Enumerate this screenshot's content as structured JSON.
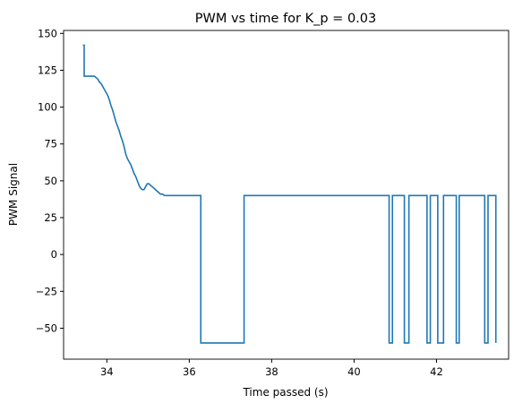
{
  "chart_data": {
    "type": "line",
    "title": "PWM vs time for K_p = 0.03",
    "xlabel": "Time passed (s)",
    "ylabel": "PWM Signal",
    "xlim": [
      32.95,
      43.75
    ],
    "ylim": [
      -71,
      152
    ],
    "x_ticks": [
      34,
      36,
      38,
      40,
      42
    ],
    "y_ticks": [
      -50,
      -25,
      0,
      25,
      50,
      75,
      100,
      125,
      150
    ],
    "grid": false,
    "colors": {
      "line": "#1f77b4",
      "axes": "#000000",
      "background": "#ffffff"
    },
    "series": [
      {
        "x": [
          33.42,
          33.45,
          33.45,
          33.7,
          33.74,
          33.78,
          33.82,
          33.86,
          33.9,
          33.94,
          33.98,
          34.02,
          34.06,
          34.1,
          34.14,
          34.18,
          34.22,
          34.26,
          34.3,
          34.34,
          34.38,
          34.42,
          34.46,
          34.5,
          34.54,
          34.58,
          34.62,
          34.66,
          34.7,
          34.74,
          34.78,
          34.82,
          34.86,
          34.9,
          34.94,
          34.98,
          35.02,
          35.06,
          35.1,
          35.14,
          35.18,
          35.22,
          35.26,
          35.3,
          35.35,
          35.4,
          35.43,
          35.43,
          36.28,
          36.28,
          37.33,
          37.33,
          40.85,
          40.85,
          40.93,
          40.93,
          41.22,
          41.22,
          41.33,
          41.33,
          41.77,
          41.77,
          41.85,
          41.85,
          42.03,
          42.03,
          42.17,
          42.17,
          42.48,
          42.48,
          42.55,
          42.55,
          43.17,
          43.17,
          43.25,
          43.25,
          43.44,
          43.44
        ],
        "y": [
          142,
          142,
          121,
          121,
          120,
          119,
          117,
          116,
          114,
          112,
          110,
          108,
          105,
          101,
          98,
          94,
          90,
          87,
          84,
          80,
          77,
          73,
          68,
          65,
          63,
          61,
          58,
          55,
          53,
          50,
          47,
          45,
          44,
          44,
          46,
          48,
          48,
          47,
          46,
          45,
          44,
          43,
          42,
          41,
          41,
          40,
          40,
          40,
          40,
          -60,
          -60,
          40,
          40,
          -60,
          -60,
          40,
          40,
          -60,
          -60,
          40,
          40,
          -60,
          -60,
          40,
          40,
          -60,
          -60,
          40,
          40,
          -60,
          -60,
          40,
          40,
          -60,
          -60,
          40,
          40,
          -60
        ]
      }
    ]
  }
}
